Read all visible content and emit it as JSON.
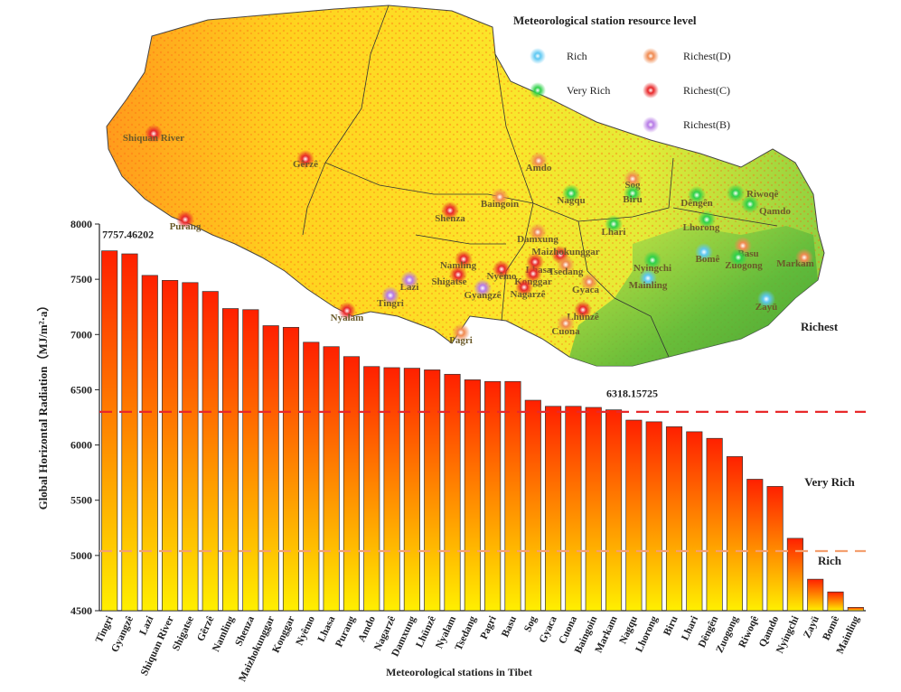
{
  "map": {
    "legend_title": "Meteorological station resource level",
    "legend": [
      {
        "label": "Rich",
        "color": "#5ec8f2"
      },
      {
        "label": "Very Rich",
        "color": "#2fd14a"
      },
      {
        "label": "Richest(D)",
        "color": "#f08a50"
      },
      {
        "label": "Richest(C)",
        "color": "#e8282a"
      },
      {
        "label": "Richest(B)",
        "color": "#b77be6"
      }
    ],
    "stations": [
      {
        "name": "Shiquan River",
        "level": "Richest(C)"
      },
      {
        "name": "Gêrzê",
        "level": "Richest(C)"
      },
      {
        "name": "Purang",
        "level": "Richest(C)"
      },
      {
        "name": "Amdo",
        "level": "Richest(D)"
      },
      {
        "name": "Sog",
        "level": "Richest(D)"
      },
      {
        "name": "Biru",
        "level": "Very Rich"
      },
      {
        "name": "Nagqu",
        "level": "Very Rich"
      },
      {
        "name": "Baingoin",
        "level": "Richest(D)"
      },
      {
        "name": "Shenza",
        "level": "Richest(C)"
      },
      {
        "name": "Dêngên",
        "level": "Very Rich"
      },
      {
        "name": "Riwoqê",
        "level": "Very Rich"
      },
      {
        "name": "Qamdo",
        "level": "Very Rich"
      },
      {
        "name": "Lhari",
        "level": "Very Rich"
      },
      {
        "name": "Lhorong",
        "level": "Very Rich"
      },
      {
        "name": "Damxung",
        "level": "Richest(D)"
      },
      {
        "name": "Maizhokunggar",
        "level": "Richest(C)"
      },
      {
        "name": "Basu",
        "level": "Richest(D)"
      },
      {
        "name": "Zuogong",
        "level": "Very Rich"
      },
      {
        "name": "Markam",
        "level": "Richest(D)"
      },
      {
        "name": "Bomê",
        "level": "Rich"
      },
      {
        "name": "Namling",
        "level": "Richest(C)"
      },
      {
        "name": "Nyêmo",
        "level": "Richest(C)"
      },
      {
        "name": "Lhasa",
        "level": "Richest(C)"
      },
      {
        "name": "Tsedang",
        "level": "Richest(D)"
      },
      {
        "name": "Nyingchi",
        "level": "Very Rich"
      },
      {
        "name": "Lazi",
        "level": "Richest(B)"
      },
      {
        "name": "Shigatse",
        "level": "Richest(C)"
      },
      {
        "name": "Konggar",
        "level": "Richest(C)"
      },
      {
        "name": "Gyaca",
        "level": "Richest(D)"
      },
      {
        "name": "Mainling",
        "level": "Rich"
      },
      {
        "name": "Gyangzê",
        "level": "Richest(B)"
      },
      {
        "name": "Nagarzê",
        "level": "Richest(C)"
      },
      {
        "name": "Tingri",
        "level": "Richest(B)"
      },
      {
        "name": "Nyalam",
        "level": "Richest(C)"
      },
      {
        "name": "Lhünzê",
        "level": "Richest(C)"
      },
      {
        "name": "Cuona",
        "level": "Richest(D)"
      },
      {
        "name": "Zayü",
        "level": "Rich"
      },
      {
        "name": "Pagri",
        "level": "Richest(D)"
      }
    ]
  },
  "chart_data": {
    "type": "bar",
    "xlabel": "Meteorological stations in Tibet",
    "ylabel": "Global Horizontal Radiation（MJ/m²·a）",
    "ylim": [
      4500,
      8000
    ],
    "yticks": [
      4500,
      5000,
      5500,
      6000,
      6500,
      7000,
      7500,
      8000
    ],
    "categories": [
      "Tingri",
      "Gyangzê",
      "Lazi",
      "Shiquan River",
      "Shigatse",
      "Gêrzê",
      "Namling",
      "Shenza",
      "Maizhokunggar",
      "Konggar",
      "Nyêmo",
      "Lhasa",
      "Purang",
      "Amdo",
      "Nagarzê",
      "Damxung",
      "Lhünzê",
      "Nyalam",
      "Tsedang",
      "Pagri",
      "Basu",
      "Sog",
      "Gyaca",
      "Cuona",
      "Baingoin",
      "Markam",
      "Nagqu",
      "Lhorong",
      "Biru",
      "Lhari",
      "Dêngên",
      "Zuogong",
      "Riwoqê",
      "Qamdo",
      "Nyingchi",
      "Zayü",
      "Bomê",
      "Mainling"
    ],
    "values": [
      7757.46,
      7730,
      7535,
      7490,
      7470,
      7390,
      7235,
      7225,
      7080,
      7065,
      6930,
      6890,
      6800,
      6710,
      6700,
      6695,
      6680,
      6640,
      6590,
      6575,
      6575,
      6405,
      6350,
      6350,
      6340,
      6318.16,
      6225,
      6210,
      6165,
      6120,
      6060,
      5895,
      5690,
      5625,
      5155,
      4785,
      4670,
      4530
    ],
    "reference_lines": [
      {
        "value": 6300,
        "color": "#e8282a",
        "label": "Very Rich"
      },
      {
        "value": 5040,
        "color": "#f4a070",
        "label": "Rich"
      }
    ],
    "top_label": "Richest",
    "annotations": [
      {
        "text": "7757.46202",
        "category": "Tingri"
      },
      {
        "text": "6318.15725",
        "category": "Markam"
      }
    ],
    "bar_gradient": [
      "#ff2000",
      "#ffef00"
    ]
  }
}
